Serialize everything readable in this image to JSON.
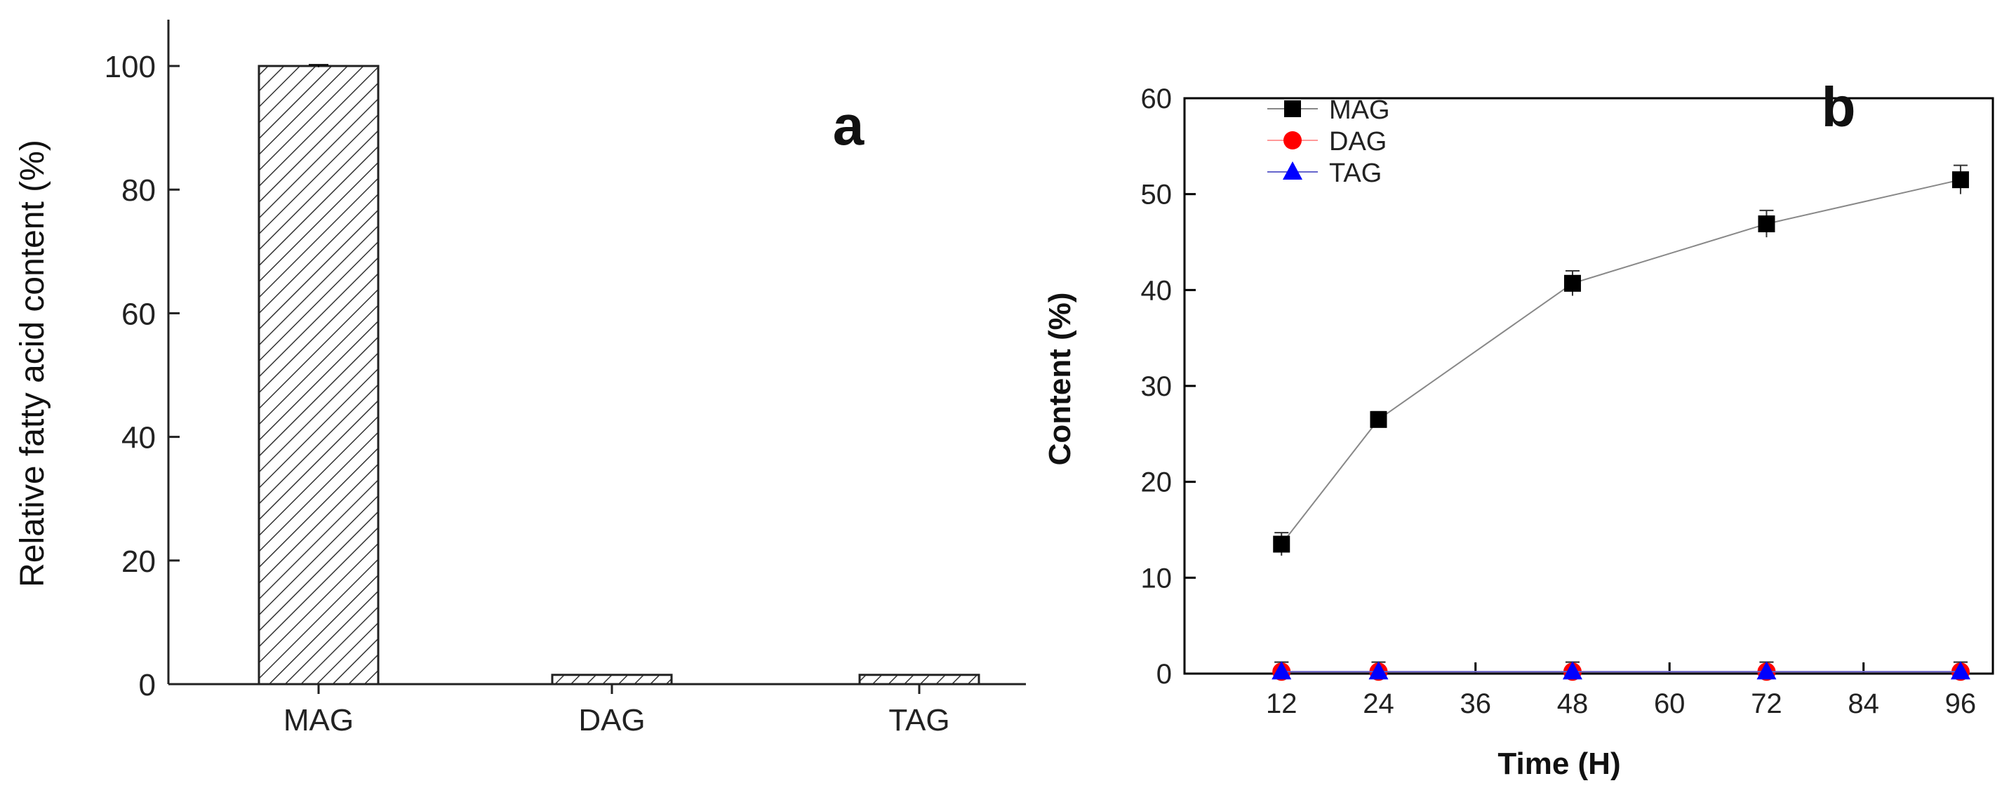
{
  "chart_data": [
    {
      "type": "bar",
      "panel_label": "a",
      "categories": [
        "MAG",
        "DAG",
        "TAG"
      ],
      "values": [
        100,
        1.5,
        1.5
      ],
      "errors": [
        0.2,
        0,
        0
      ],
      "ylabel": "Relative fatty acid content (%)",
      "xlabel": "",
      "ylim": [
        0,
        105
      ],
      "yticks": [
        0,
        20,
        40,
        60,
        80,
        100
      ],
      "bar_fill": "diagonal-hatch",
      "colors": {
        "axis": "#222222",
        "bar": "#222222"
      }
    },
    {
      "type": "line",
      "panel_label": "b",
      "xlabel": "Time (H)",
      "ylabel": "Content (%)",
      "xlim": [
        0,
        100
      ],
      "ylim": [
        0,
        60
      ],
      "xticks": [
        12,
        24,
        36,
        48,
        60,
        72,
        84,
        96
      ],
      "yticks": [
        0,
        10,
        20,
        30,
        40,
        50,
        60
      ],
      "x": [
        12,
        24,
        48,
        72,
        96
      ],
      "legend_position": "top-left",
      "series": [
        {
          "name": "MAG",
          "marker": "square",
          "color": "#000000",
          "line_color": "#888888",
          "values": [
            13.5,
            26.5,
            40.7,
            46.9,
            51.5
          ],
          "errors": [
            1.2,
            0.8,
            1.3,
            1.4,
            1.5
          ]
        },
        {
          "name": "DAG",
          "marker": "circle",
          "color": "#ff0000",
          "line_color": "#ff9999",
          "values": [
            0.2,
            0.2,
            0.2,
            0.2,
            0.2
          ],
          "errors": [
            1.0,
            1.0,
            1.0,
            1.0,
            1.0
          ]
        },
        {
          "name": "TAG",
          "marker": "triangle",
          "color": "#0000ff",
          "line_color": "#6666cc",
          "values": [
            0.2,
            0.2,
            0.2,
            0.2,
            0.2
          ],
          "errors": [
            1.0,
            1.0,
            1.0,
            1.0,
            1.0
          ]
        }
      ]
    }
  ]
}
